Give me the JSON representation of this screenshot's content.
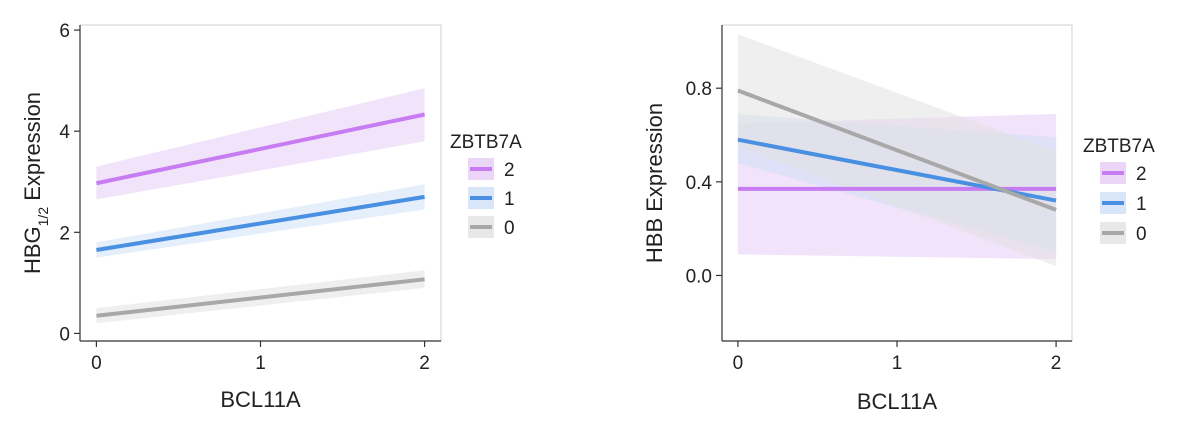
{
  "chart_data": [
    {
      "type": "line",
      "title": "",
      "xlabel": "BCL11A",
      "ylabel_main": "HBG",
      "ylabel_sub": "1/2",
      "ylabel_rest": " Expression",
      "xlim": [
        -0.1,
        2.1
      ],
      "ylim": [
        -0.15,
        6.1
      ],
      "x_ticks": [
        0,
        1,
        2
      ],
      "x_tick_labels": [
        "0",
        "1",
        "2"
      ],
      "y_ticks": [
        0,
        2,
        4,
        6
      ],
      "y_tick_labels": [
        "0",
        "2",
        "4",
        "6"
      ],
      "legend_title": "ZBTB7A",
      "legend_position": "right",
      "series": [
        {
          "name": "2",
          "color": "#c77cf2",
          "band_color": "#e6ccf5",
          "x": [
            0,
            2
          ],
          "y": [
            2.97,
            4.33
          ],
          "lower": [
            2.65,
            3.8
          ],
          "upper": [
            3.3,
            4.85
          ]
        },
        {
          "name": "1",
          "color": "#4a90e2",
          "band_color": "#cfe0f7",
          "x": [
            0,
            2
          ],
          "y": [
            1.65,
            2.7
          ],
          "lower": [
            1.5,
            2.45
          ],
          "upper": [
            1.8,
            2.95
          ]
        },
        {
          "name": "0",
          "color": "#a8a8a8",
          "band_color": "#e2e2e2",
          "x": [
            0,
            2
          ],
          "y": [
            0.35,
            1.07
          ],
          "lower": [
            0.2,
            0.9
          ],
          "upper": [
            0.5,
            1.25
          ]
        }
      ]
    },
    {
      "type": "line",
      "title": "",
      "xlabel": "BCL11A",
      "ylabel_main": "HBB Expression",
      "ylabel_sub": "",
      "ylabel_rest": "",
      "xlim": [
        -0.1,
        2.1
      ],
      "ylim": [
        -0.28,
        1.07
      ],
      "x_ticks": [
        0,
        1,
        2
      ],
      "x_tick_labels": [
        "0",
        "1",
        "2"
      ],
      "y_ticks": [
        0.0,
        0.4,
        0.8
      ],
      "y_tick_labels": [
        "0.0",
        "0.4",
        "0.8"
      ],
      "legend_title": "ZBTB7A",
      "legend_position": "right",
      "series": [
        {
          "name": "2",
          "color": "#c77cf2",
          "band_color": "#e6ccf5",
          "x": [
            0,
            2
          ],
          "y": [
            0.37,
            0.37
          ],
          "lower": [
            0.09,
            0.07
          ],
          "upper": [
            0.65,
            0.69
          ]
        },
        {
          "name": "1",
          "color": "#4a90e2",
          "band_color": "#cfe0f7",
          "x": [
            0,
            2
          ],
          "y": [
            0.58,
            0.32
          ],
          "lower": [
            0.48,
            0.1
          ],
          "upper": [
            0.69,
            0.59
          ]
        },
        {
          "name": "0",
          "color": "#a8a8a8",
          "band_color": "#e2e2e2",
          "x": [
            0,
            2
          ],
          "y": [
            0.79,
            0.28
          ],
          "lower": [
            0.55,
            0.04
          ],
          "upper": [
            1.03,
            0.53
          ]
        }
      ]
    }
  ]
}
